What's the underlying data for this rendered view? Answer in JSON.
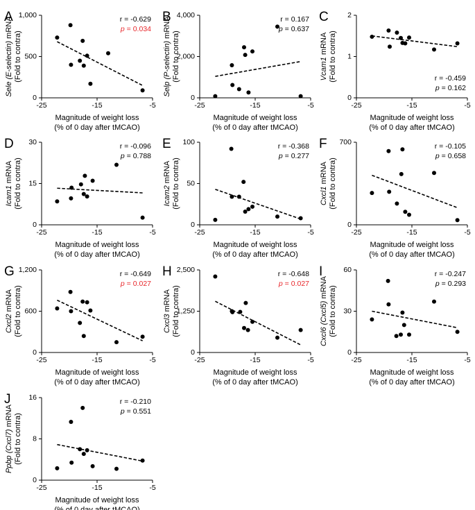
{
  "figure": {
    "shared_xlabel_line1": "Magnitude of weight loss",
    "shared_xlabel_line2": "(% of 0 day after tMCAO)",
    "ylabel_line2": "(Fold to contra)"
  },
  "colors": {
    "sig": "#e8262a",
    "ink": "#000000"
  },
  "chart_data": [
    {
      "type": "scatter",
      "panel": "A",
      "gene": "Sele (E-selectin)",
      "ylabel_suffix": " mRNA",
      "xticks": [
        "-25",
        "-15",
        "-5"
      ],
      "xlim": [
        -25,
        -5
      ],
      "yticks": [
        "0",
        "500",
        "1,000"
      ],
      "ylim": [
        0,
        1000
      ],
      "r": "r = -0.629",
      "p_label": "p",
      "p_value": " = 0.034",
      "significant": true,
      "stats_pos": "top-right",
      "x": [
        -22.2,
        -19.8,
        -19.7,
        -18.1,
        -17.6,
        -17.4,
        -16.8,
        -16.2,
        -13.0,
        -6.8
      ],
      "y": [
        730,
        880,
        400,
        450,
        690,
        390,
        510,
        170,
        540,
        90
      ],
      "trend": [
        [
          -22.2,
          680
        ],
        [
          -6.8,
          150
        ]
      ]
    },
    {
      "type": "scatter",
      "panel": "B",
      "gene": "Selp (P-selectin)",
      "ylabel_suffix": " mRNA",
      "xticks": [
        "-25",
        "-15",
        "-5"
      ],
      "xlim": [
        -25,
        -5
      ],
      "yticks": [
        "0",
        "2,000",
        "4,000"
      ],
      "ylim": [
        0,
        4000
      ],
      "r": "r = 0.167",
      "p_label": "p",
      "p_value": " = 0.637",
      "significant": false,
      "stats_pos": "top-right",
      "x": [
        -22.2,
        -19.2,
        -19.1,
        -17.9,
        -17.0,
        -16.8,
        -16.2,
        -15.5,
        -11.0,
        -6.8
      ],
      "y": [
        80,
        1580,
        620,
        420,
        2450,
        2080,
        260,
        2250,
        3450,
        80
      ],
      "trend": [
        [
          -22.2,
          1040
        ],
        [
          -6.8,
          1760
        ]
      ]
    },
    {
      "type": "scatter",
      "panel": "C",
      "gene": "Vcam1",
      "ylabel_suffix": " mRNA",
      "xticks": [
        "-25",
        "-15",
        "-5"
      ],
      "xlim": [
        -25,
        -5
      ],
      "yticks": [
        "0",
        "1",
        "2"
      ],
      "ylim": [
        0,
        2
      ],
      "r": "r = -0.459",
      "p_label": "p",
      "p_value": " = 0.162",
      "significant": false,
      "stats_pos": "bottom-right",
      "x": [
        -22.2,
        -19.2,
        -19.0,
        -17.7,
        -17.0,
        -16.7,
        -16.2,
        -15.5,
        -11.0,
        -6.8
      ],
      "y": [
        1.48,
        1.63,
        1.24,
        1.58,
        1.45,
        1.33,
        1.32,
        1.46,
        1.17,
        1.32
      ],
      "trend": [
        [
          -22.2,
          1.5
        ],
        [
          -6.8,
          1.24
        ]
      ]
    },
    {
      "type": "scatter",
      "panel": "D",
      "gene": "Icam1",
      "ylabel_suffix": " mRNA",
      "xticks": [
        "-25",
        "-15",
        "-5"
      ],
      "xlim": [
        -25,
        -5
      ],
      "yticks": [
        "0",
        "15",
        "30"
      ],
      "ylim": [
        0,
        30
      ],
      "r": "r = -0.096",
      "p_label": "p",
      "p_value": " = 0.788",
      "significant": false,
      "stats_pos": "top-right",
      "x": [
        -22.2,
        -19.7,
        -19.6,
        -17.9,
        -17.4,
        -17.2,
        -16.8,
        -15.8,
        -11.5,
        -6.8
      ],
      "y": [
        8.5,
        9.6,
        13.5,
        14.7,
        11.2,
        17.8,
        10.3,
        16.0,
        21.8,
        2.6
      ],
      "trend": [
        [
          -22.2,
          13.3
        ],
        [
          -6.8,
          11.6
        ]
      ]
    },
    {
      "type": "scatter",
      "panel": "E",
      "gene": "Icam2",
      "ylabel_suffix": " mRNA",
      "xticks": [
        "-25",
        "-15",
        "-5"
      ],
      "xlim": [
        -25,
        -5
      ],
      "yticks": [
        "0",
        "50",
        "100"
      ],
      "ylim": [
        0,
        100
      ],
      "r": "r = -0.368",
      "p_label": "p",
      "p_value": " = 0.277",
      "significant": false,
      "stats_pos": "top-right",
      "x": [
        -22.2,
        -19.3,
        -19.2,
        -17.9,
        -17.1,
        -16.8,
        -16.2,
        -15.5,
        -11.0,
        -6.8
      ],
      "y": [
        6,
        92,
        34,
        34,
        52,
        16,
        19,
        22,
        10,
        8
      ],
      "trend": [
        [
          -22.2,
          43
        ],
        [
          -6.8,
          7
        ]
      ]
    },
    {
      "type": "scatter",
      "panel": "F",
      "gene": "Cxcl1",
      "ylabel_suffix": " mRNA",
      "xticks": [
        "-25",
        "-15",
        "-5"
      ],
      "xlim": [
        -25,
        -5
      ],
      "yticks": [
        "0",
        "700"
      ],
      "ylim": [
        0,
        700
      ],
      "r": "r = -0.105",
      "p_label": "p",
      "p_value": " = 0.658",
      "significant": false,
      "stats_pos": "top-right",
      "x": [
        -22.2,
        -19.2,
        -19.1,
        -17.7,
        -16.9,
        -16.7,
        -16.2,
        -15.5,
        -11.0,
        -6.8
      ],
      "y": [
        270,
        625,
        280,
        180,
        430,
        640,
        110,
        85,
        440,
        40
      ],
      "trend": [
        [
          -22.2,
          420
        ],
        [
          -6.8,
          145
        ]
      ]
    },
    {
      "type": "scatter",
      "panel": "G",
      "gene": "Cxcl2",
      "ylabel_suffix": " mRNA",
      "xticks": [
        "-25",
        "-15",
        "-5"
      ],
      "xlim": [
        -25,
        -5
      ],
      "yticks": [
        "0",
        "600",
        "1,200"
      ],
      "ylim": [
        0,
        1200
      ],
      "r": "r = -0.649",
      "p_label": "p",
      "p_value": " = 0.027",
      "significant": true,
      "stats_pos": "top-right",
      "x": [
        -22.2,
        -19.8,
        -19.7,
        -18.1,
        -17.6,
        -17.4,
        -16.8,
        -16.2,
        -11.5,
        -6.8
      ],
      "y": [
        640,
        880,
        600,
        430,
        740,
        240,
        730,
        610,
        150,
        230
      ],
      "trend": [
        [
          -22.2,
          760
        ],
        [
          -6.8,
          170
        ]
      ]
    },
    {
      "type": "scatter",
      "panel": "H",
      "gene": "Cxcl3",
      "ylabel_suffix": " mRNA",
      "xticks": [
        "-25",
        "-15",
        "-5"
      ],
      "xlim": [
        -25,
        -5
      ],
      "yticks": [
        "0",
        "1,250",
        "2,500"
      ],
      "ylim": [
        0,
        2500
      ],
      "r": "r = -0.648",
      "p_label": "p",
      "p_value": " = 0.027",
      "significant": true,
      "stats_pos": "top-right",
      "x": [
        -22.2,
        -19.2,
        -19.1,
        -17.7,
        -17.0,
        -16.7,
        -16.3,
        -15.5,
        -11.0,
        -6.8
      ],
      "y": [
        2300,
        1250,
        1220,
        1230,
        740,
        1500,
        680,
        930,
        450,
        680
      ],
      "trend": [
        [
          -22.2,
          1550
        ],
        [
          -6.8,
          230
        ]
      ]
    },
    {
      "type": "scatter",
      "panel": "I",
      "gene": "Cxcl6 (Cxcl5)",
      "ylabel_suffix": " mRNA",
      "xticks": [
        "-25",
        "-15",
        "-5"
      ],
      "xlim": [
        -25,
        -5
      ],
      "yticks": [
        "0",
        "30",
        "60"
      ],
      "ylim": [
        0,
        60
      ],
      "r": "r = -0.247",
      "p_label": "p",
      "p_value": " = 0.293",
      "significant": false,
      "stats_pos": "top-right",
      "x": [
        -22.2,
        -19.3,
        -19.2,
        -17.8,
        -17.0,
        -16.7,
        -16.4,
        -15.5,
        -11.0,
        -6.8
      ],
      "y": [
        24,
        52,
        35,
        12,
        13,
        29,
        20,
        13,
        37,
        15
      ],
      "trend": [
        [
          -22.2,
          30
        ],
        [
          -6.8,
          18
        ]
      ]
    },
    {
      "type": "scatter",
      "panel": "J",
      "gene": "Ppbp (Cxcl7)",
      "ylabel_suffix": " mRNA",
      "xticks": [
        "-25",
        "-15",
        "-5"
      ],
      "xlim": [
        -25,
        -5
      ],
      "yticks": [
        "0",
        "8",
        "16"
      ],
      "ylim": [
        0,
        16
      ],
      "r": "r = -0.210",
      "p_label": "p",
      "p_value": " = 0.551",
      "significant": false,
      "stats_pos": "top-right",
      "x": [
        -22.2,
        -19.7,
        -19.6,
        -18.1,
        -17.6,
        -17.4,
        -16.8,
        -15.8,
        -11.5,
        -6.8
      ],
      "y": [
        2.3,
        11.3,
        3.4,
        6.0,
        14.0,
        5.1,
        5.8,
        2.7,
        2.2,
        3.8
      ],
      "trend": [
        [
          -22.2,
          6.9
        ],
        [
          -6.8,
          3.7
        ]
      ]
    }
  ]
}
